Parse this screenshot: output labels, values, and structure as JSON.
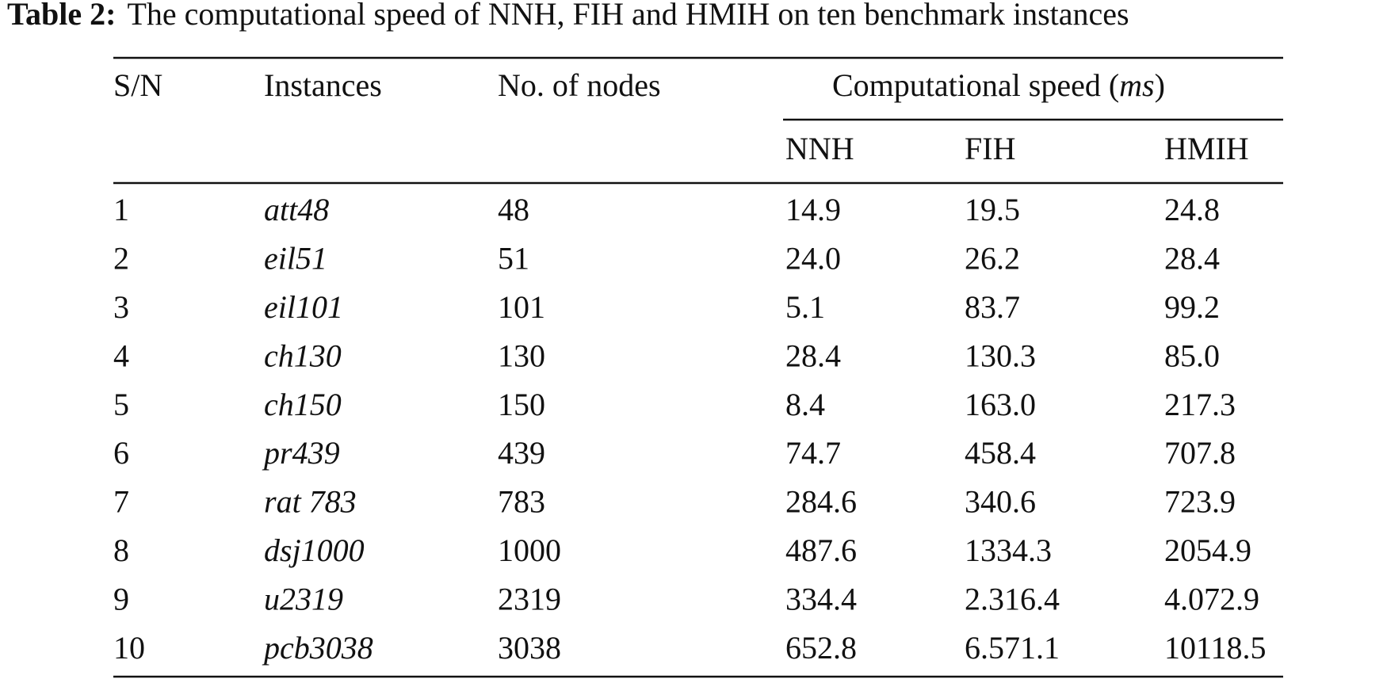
{
  "caption": {
    "label": "Table 2:",
    "text": "The computational speed of NNH, FIH and HMIH on ten benchmark instances"
  },
  "table": {
    "headers": [
      "S/N",
      "Instances",
      "No. of nodes"
    ],
    "group_header": {
      "prefix": "Computational speed (",
      "unit": "ms",
      "suffix": ")"
    },
    "subheaders": [
      "NNH",
      "FIH",
      "HMIH"
    ],
    "rows": [
      [
        "1",
        "att48",
        "48",
        "14.9",
        "19.5",
        "24.8"
      ],
      [
        "2",
        "eil51",
        "51",
        "24.0",
        "26.2",
        "28.4"
      ],
      [
        "3",
        "eil101",
        "101",
        "5.1",
        "83.7",
        "99.2"
      ],
      [
        "4",
        "ch130",
        "130",
        "28.4",
        "130.3",
        "85.0"
      ],
      [
        "5",
        "ch150",
        "150",
        "8.4",
        "163.0",
        "217.3"
      ],
      [
        "6",
        "pr439",
        "439",
        "74.7",
        "458.4",
        "707.8"
      ],
      [
        "7",
        "rat 783",
        "783",
        "284.6",
        "340.6",
        "723.9"
      ],
      [
        "8",
        "dsj1000",
        "1000",
        "487.6",
        "1334.3",
        "2054.9"
      ],
      [
        "9",
        "u2319",
        "2319",
        "334.4",
        "2.316.4",
        "4.072.9"
      ],
      [
        "10",
        "pcb3038",
        "3038",
        "652.8",
        "6.571.1",
        "10118.5"
      ]
    ]
  }
}
